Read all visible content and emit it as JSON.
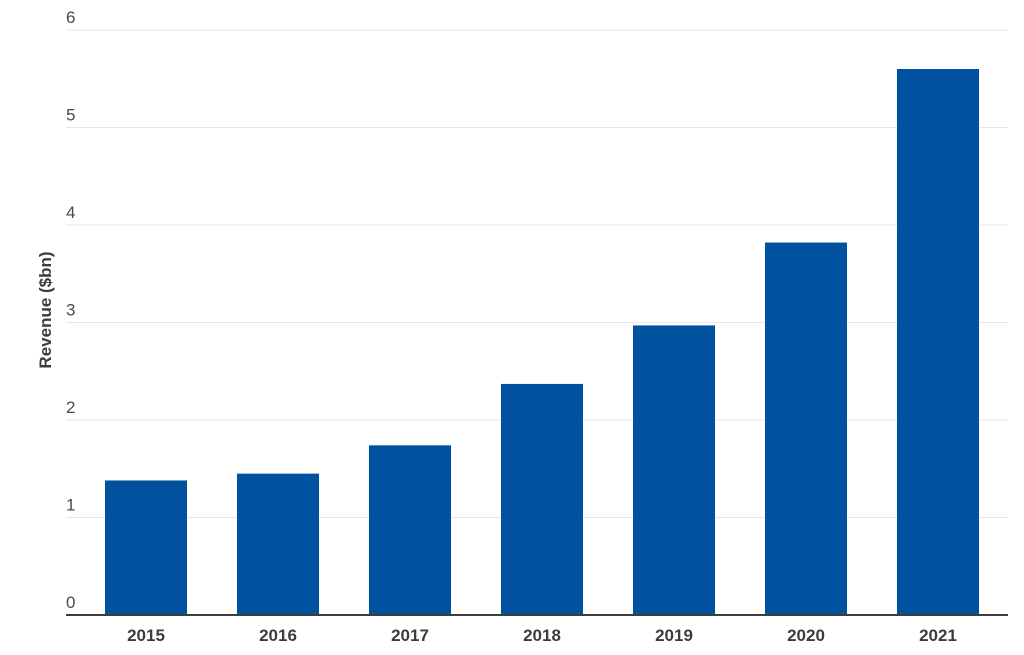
{
  "chart_data": {
    "type": "bar",
    "title": "",
    "xlabel": "",
    "ylabel": "Revenue ($bn)",
    "categories": [
      "2015",
      "2016",
      "2017",
      "2018",
      "2019",
      "2020",
      "2021"
    ],
    "values": [
      1.38,
      1.45,
      1.74,
      2.37,
      2.97,
      3.82,
      5.6
    ],
    "ylim": [
      0,
      6
    ],
    "yticks": [
      "0",
      "1",
      "2",
      "3",
      "4",
      "5",
      "6"
    ],
    "grid": "horizontal",
    "legend": "none",
    "colors": {
      "bar": "#00529f",
      "grid": "#e6e6e6",
      "axis": "#3c3c3c",
      "text": "#4a4a4a"
    }
  }
}
